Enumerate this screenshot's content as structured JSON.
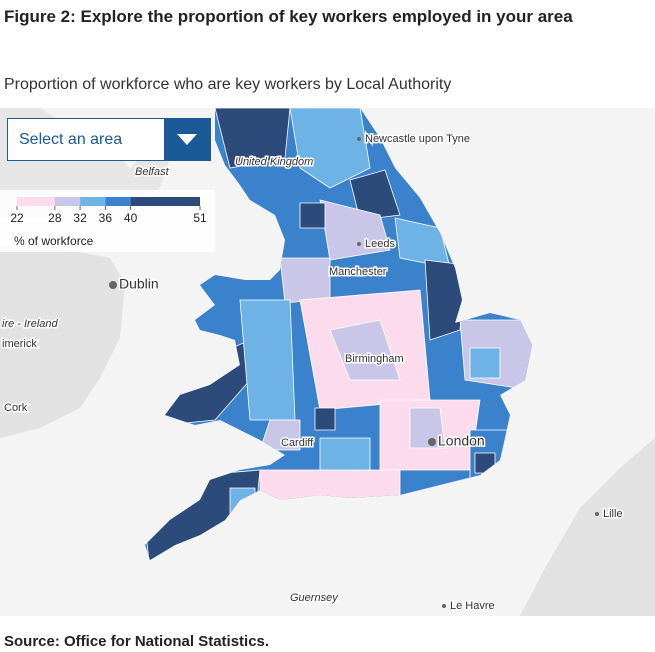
{
  "header": {
    "title": "Figure 2: Explore the proportion of key workers employed in your area",
    "subtitle": "Proportion of workforce who are key workers by Local Authority"
  },
  "dropdown": {
    "placeholder": "Select an area"
  },
  "legend": {
    "breaks": [
      22,
      28,
      32,
      36,
      40,
      51
    ],
    "colors": [
      "#fcdcec",
      "#c9c6e8",
      "#6db3e6",
      "#3b82cc",
      "#2c4b7b"
    ],
    "label": "% of workforce"
  },
  "places": [
    {
      "name": "Newcastle upon Tyne"
    },
    {
      "name": "United Kingdom"
    },
    {
      "name": "Belfast"
    },
    {
      "name": "Dublin"
    },
    {
      "name": "ire - Ireland"
    },
    {
      "name": "imerick"
    },
    {
      "name": "Cork"
    },
    {
      "name": "Leeds"
    },
    {
      "name": "Manchester"
    },
    {
      "name": "Birmingham"
    },
    {
      "name": "Cardiff"
    },
    {
      "name": "London"
    },
    {
      "name": "Lille"
    },
    {
      "name": "Guernsey"
    },
    {
      "name": "Le Havre"
    }
  ],
  "source": "Source: Office for National Statistics."
}
